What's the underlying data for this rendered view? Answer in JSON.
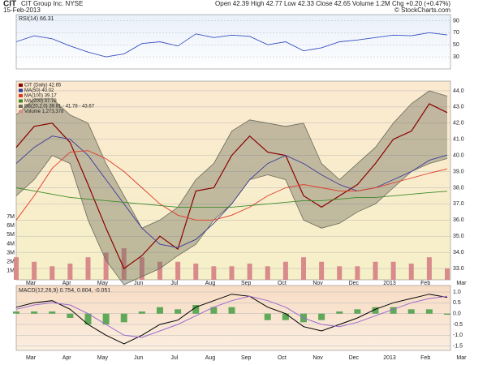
{
  "chart_data": {
    "type": "line",
    "title": "CIT",
    "subtitle": "CIT Group Inc. NYSE",
    "date": "15-Feb-2013",
    "quote": "Open 42.39 High 42.77 Low 42.33 Close 42.65 Volume 1.2M Chg +0.20 (+0.47%)",
    "source": "© StockCharts.com",
    "xticks": [
      "Mar",
      "Apr",
      "May",
      "Jun",
      "Jul",
      "Aug",
      "Sep",
      "Oct",
      "Nov",
      "Dec",
      "2013",
      "Feb",
      "Mar"
    ],
    "rsi": {
      "label": "RSI(14) 66.31",
      "color": "#3a4fc4",
      "ylim": [
        10,
        100
      ],
      "yticks": [
        30,
        50,
        70,
        90
      ],
      "values": [
        55,
        65,
        60,
        48,
        38,
        30,
        35,
        52,
        55,
        48,
        68,
        62,
        66,
        64,
        50,
        55,
        40,
        45,
        55,
        58,
        62,
        66,
        65,
        70,
        66.31
      ]
    },
    "price": {
      "ylim": [
        32.3,
        44.6
      ],
      "yticks": [
        {
          "value": 33,
          "label": "33.0"
        },
        {
          "value": 34,
          "label": "34.0"
        },
        {
          "value": 35,
          "label": "35.0"
        },
        {
          "value": 36,
          "label": "36.0"
        },
        {
          "value": 37,
          "label": "37.0"
        },
        {
          "value": 38,
          "label": "38.0"
        },
        {
          "value": 39,
          "label": "39.0"
        },
        {
          "value": 40,
          "label": "40.0"
        },
        {
          "value": 41,
          "label": "41.0"
        },
        {
          "value": 42,
          "label": "42.0"
        },
        {
          "value": 43,
          "label": "43.0"
        },
        {
          "value": 44,
          "label": "44.0"
        }
      ],
      "bb": {
        "name": "BB(20,2.0) 39.81 - 41.78 - 43.67",
        "color": "#6b6b5a",
        "upper": [
          42.5,
          43.5,
          43.5,
          42.5,
          42.0,
          39.5,
          37.5,
          35.5,
          36.0,
          36.8,
          38.5,
          39.5,
          41.5,
          42.2,
          42.0,
          41.8,
          42.0,
          39.5,
          38.5,
          39.5,
          40.5,
          42.0,
          43.2,
          44.0,
          43.67
        ],
        "lower": [
          37.5,
          38.5,
          40.0,
          39.5,
          36.0,
          33.5,
          32.0,
          32.5,
          33.0,
          33.8,
          34.5,
          36.0,
          37.0,
          38.5,
          38.8,
          38.5,
          36.0,
          35.5,
          35.8,
          36.5,
          37.0,
          38.0,
          39.0,
          39.5,
          39.81
        ]
      },
      "series": [
        {
          "name": "CIT (Daily) 42.65",
          "color": "#8b0000",
          "values": [
            40.5,
            41.8,
            42.0,
            40.8,
            38.2,
            35.5,
            33.0,
            33.8,
            35.0,
            34.2,
            37.8,
            38.0,
            40.0,
            41.2,
            40.2,
            40.0,
            37.5,
            36.8,
            37.5,
            38.2,
            39.5,
            41.0,
            41.5,
            43.2,
            42.65
          ]
        },
        {
          "name": "MA(50) 40.02",
          "color": "#3a3a9a",
          "values": [
            39.5,
            40.5,
            41.2,
            41.0,
            40.0,
            38.5,
            37.0,
            35.5,
            34.5,
            34.3,
            34.8,
            35.8,
            37.0,
            38.5,
            39.5,
            40.0,
            39.5,
            38.8,
            38.2,
            37.8,
            38.0,
            38.5,
            39.0,
            39.7,
            40.02
          ]
        },
        {
          "name": "MA(100) 39.17",
          "color": "#e03a2a",
          "values": [
            36.0,
            37.5,
            39.2,
            40.2,
            40.3,
            39.8,
            39.0,
            38.0,
            37.0,
            36.3,
            36.0,
            36.0,
            36.3,
            36.8,
            37.5,
            38.0,
            38.2,
            38.0,
            37.8,
            37.8,
            38.0,
            38.3,
            38.6,
            38.9,
            39.17
          ]
        },
        {
          "name": "MA(200) 37.78",
          "color": "#3d8a2a",
          "values": [
            38.0,
            37.8,
            37.6,
            37.4,
            37.3,
            37.2,
            37.1,
            37.0,
            36.9,
            36.8,
            36.8,
            36.8,
            36.8,
            36.9,
            37.0,
            37.1,
            37.2,
            37.2,
            37.3,
            37.4,
            37.4,
            37.5,
            37.6,
            37.7,
            37.78
          ]
        }
      ],
      "volume": {
        "name": "Volume 1,273,378",
        "color": "#d98a8a",
        "ylim": [
          0,
          22000000
        ],
        "yticks": [
          {
            "value": 1000000,
            "label": "1M"
          },
          {
            "value": 2000000,
            "label": "2M"
          },
          {
            "value": 3000000,
            "label": "3M"
          },
          {
            "value": 4000000,
            "label": "4M"
          },
          {
            "value": 5000000,
            "label": "5M"
          },
          {
            "value": 6000000,
            "label": "6M"
          },
          {
            "value": 7000000,
            "label": "7M"
          }
        ],
        "values": [
          2500000,
          2000000,
          1500000,
          1800000,
          2500000,
          3000000,
          3500000,
          2500000,
          2000000,
          2000000,
          1800000,
          1500000,
          1500000,
          1800000,
          1500000,
          2000000,
          2500000,
          2000000,
          1500000,
          1500000,
          2000000,
          2000000,
          1800000,
          2500000,
          1273378
        ]
      }
    },
    "macd": {
      "label": "MACD(12,26,9) 0.754, 0.804, -0.051",
      "ylim": [
        -1.7,
        1.3
      ],
      "yticks": [
        -1.5,
        {
          "value": -1,
          "label": "-1.0"
        },
        -0.5,
        {
          "value": 0,
          "label": "0.0"
        },
        0.5,
        {
          "value": 1,
          "label": "1.0"
        }
      ],
      "series": [
        {
          "name": "MACD",
          "color": "#000000",
          "values": [
            0.3,
            0.5,
            0.6,
            0.2,
            -0.5,
            -1.0,
            -1.4,
            -1.0,
            -0.5,
            -0.3,
            0.3,
            0.6,
            0.9,
            0.8,
            0.3,
            0.0,
            -0.6,
            -0.8,
            -0.5,
            -0.2,
            0.2,
            0.5,
            0.7,
            0.9,
            0.754
          ]
        },
        {
          "name": "Signal",
          "color": "#9a6ad0",
          "values": [
            0.2,
            0.4,
            0.5,
            0.4,
            0.0,
            -0.5,
            -1.0,
            -1.1,
            -0.8,
            -0.5,
            -0.1,
            0.3,
            0.6,
            0.8,
            0.6,
            0.3,
            -0.2,
            -0.5,
            -0.6,
            -0.4,
            -0.1,
            0.2,
            0.5,
            0.7,
            0.804
          ]
        }
      ],
      "histogram": {
        "color": "#3a9a3a",
        "values": [
          0.1,
          0.1,
          0.1,
          -0.2,
          -0.5,
          -0.5,
          -0.4,
          0.1,
          0.3,
          0.2,
          0.4,
          0.3,
          0.3,
          0.0,
          -0.3,
          -0.3,
          -0.4,
          -0.3,
          0.1,
          0.2,
          0.3,
          0.3,
          0.2,
          0.2,
          -0.051
        ]
      }
    }
  }
}
